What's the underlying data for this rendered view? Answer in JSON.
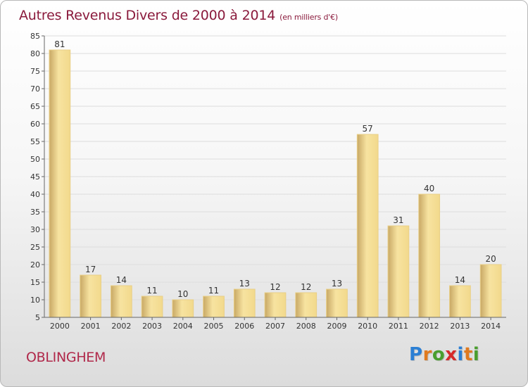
{
  "header": {
    "title": "Autres Revenus Divers de 2000 à 2014",
    "subtitle": "(en milliers d'€)"
  },
  "footer": {
    "town": "OBLINGHEM",
    "logo": [
      "P",
      "r",
      "o",
      "x",
      "i",
      "t",
      "i"
    ]
  },
  "colors": {
    "title": "#8a1a3c",
    "town": "#b0284a",
    "bar_light": "#f7e3a0",
    "bar_dark": "#c8a865",
    "logo": [
      "#2b7fd4",
      "#e07a1f",
      "#4a9e2e",
      "#d62a2a",
      "#2b7fd4",
      "#e07a1f",
      "#4a9e2e"
    ]
  },
  "chart_data": {
    "type": "bar",
    "title": "Autres Revenus Divers de 2000 à 2014",
    "subtitle": "(en milliers d'€)",
    "categories": [
      "2000",
      "2001",
      "2002",
      "2003",
      "2004",
      "2005",
      "2006",
      "2007",
      "2008",
      "2009",
      "2010",
      "2011",
      "2012",
      "2013",
      "2014"
    ],
    "values": [
      81,
      17,
      14,
      11,
      10,
      11,
      13,
      12,
      12,
      13,
      57,
      31,
      40,
      14,
      20
    ],
    "ylim": [
      5,
      85
    ],
    "yticks": [
      5,
      10,
      15,
      20,
      25,
      30,
      35,
      40,
      45,
      50,
      55,
      60,
      65,
      70,
      75,
      80,
      85
    ],
    "grid": true,
    "xlabel": "",
    "ylabel": ""
  }
}
